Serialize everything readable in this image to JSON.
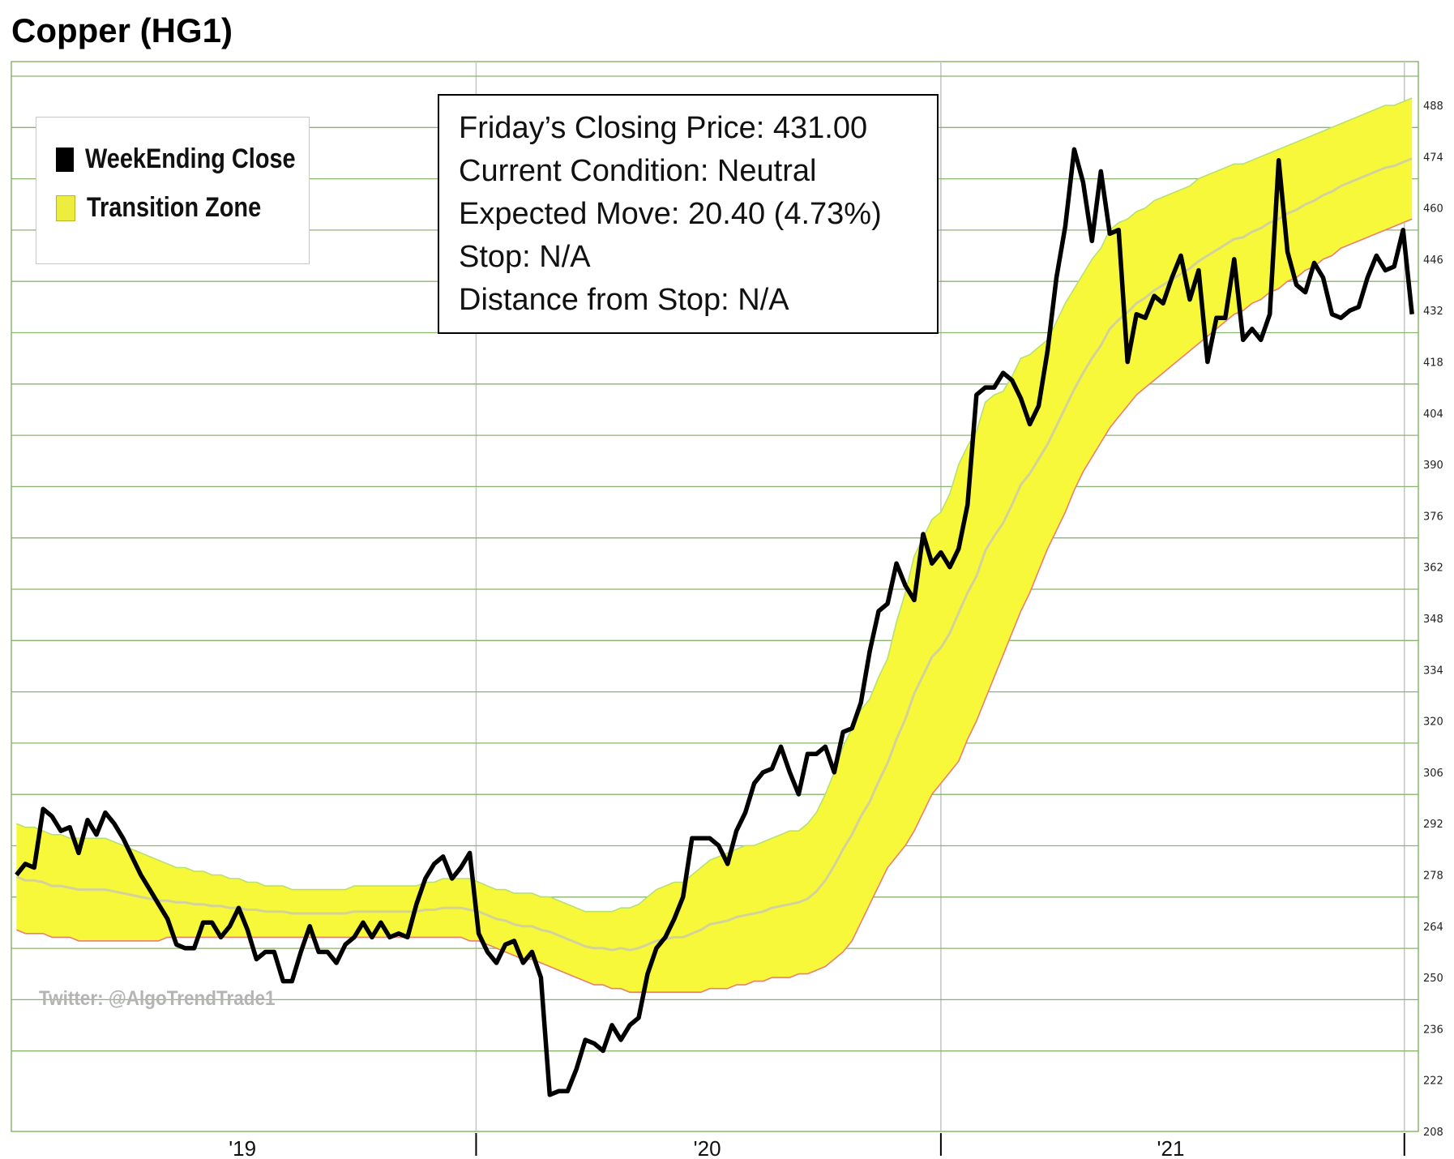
{
  "title": "Copper (HG1)",
  "legend": [
    {
      "label": "WeekEnding Close",
      "color": "#000000"
    },
    {
      "label": "Transition Zone",
      "color": "#eded3e"
    }
  ],
  "info_box": {
    "lines": [
      "Friday’s Closing Price: 431.00",
      "Current Condition: Neutral",
      "Expected Move: 20.40 (4.73%)",
      "Stop: N/A",
      "Distance from Stop: N/A"
    ]
  },
  "watermark": "Twitter: @AlgoTrendTrade1",
  "colors": {
    "price_line": "#000000",
    "zone_fill": "#f8f83a",
    "zone_upper_edge": "#b8e070",
    "zone_lower_edge": "#e88070",
    "mid_line": "#d2d29a",
    "grid": "#8ab56e",
    "vertical_grid": "#c4c4c4"
  },
  "chart_data": {
    "type": "line",
    "title": "Copper (HG1)",
    "xlabel": "",
    "ylabel": "",
    "ylim": [
      208,
      500
    ],
    "x_tick_labels": [
      "'19",
      "'20",
      "'21"
    ],
    "y_ticks": [
      208,
      222,
      236,
      250,
      264,
      278,
      292,
      306,
      320,
      334,
      348,
      362,
      376,
      390,
      404,
      418,
      432,
      446,
      460,
      474,
      488
    ],
    "grid": true,
    "legend_position": "top-left",
    "x": [
      "2019-01-04",
      "2019-01-11",
      "2019-01-18",
      "2019-01-25",
      "2019-02-01",
      "2019-02-08",
      "2019-02-15",
      "2019-02-22",
      "2019-03-01",
      "2019-03-08",
      "2019-03-15",
      "2019-03-22",
      "2019-03-29",
      "2019-04-05",
      "2019-04-12",
      "2019-04-19",
      "2019-04-26",
      "2019-05-03",
      "2019-05-10",
      "2019-05-17",
      "2019-05-24",
      "2019-05-31",
      "2019-06-07",
      "2019-06-14",
      "2019-06-21",
      "2019-06-28",
      "2019-07-05",
      "2019-07-12",
      "2019-07-19",
      "2019-07-26",
      "2019-08-02",
      "2019-08-09",
      "2019-08-16",
      "2019-08-23",
      "2019-08-30",
      "2019-09-06",
      "2019-09-13",
      "2019-09-20",
      "2019-09-27",
      "2019-10-04",
      "2019-10-11",
      "2019-10-18",
      "2019-10-25",
      "2019-11-01",
      "2019-11-08",
      "2019-11-15",
      "2019-11-22",
      "2019-11-29",
      "2019-12-06",
      "2019-12-13",
      "2019-12-20",
      "2019-12-27",
      "2020-01-03",
      "2020-01-10",
      "2020-01-17",
      "2020-01-24",
      "2020-01-31",
      "2020-02-07",
      "2020-02-14",
      "2020-02-21",
      "2020-02-28",
      "2020-03-06",
      "2020-03-13",
      "2020-03-20",
      "2020-03-27",
      "2020-04-03",
      "2020-04-10",
      "2020-04-17",
      "2020-04-24",
      "2020-05-01",
      "2020-05-08",
      "2020-05-15",
      "2020-05-22",
      "2020-05-29",
      "2020-06-05",
      "2020-06-12",
      "2020-06-19",
      "2020-06-26",
      "2020-07-03",
      "2020-07-10",
      "2020-07-17",
      "2020-07-24",
      "2020-07-31",
      "2020-08-07",
      "2020-08-14",
      "2020-08-21",
      "2020-08-28",
      "2020-09-04",
      "2020-09-11",
      "2020-09-18",
      "2020-09-25",
      "2020-10-02",
      "2020-10-09",
      "2020-10-16",
      "2020-10-23",
      "2020-10-30",
      "2020-11-06",
      "2020-11-13",
      "2020-11-20",
      "2020-11-27",
      "2020-12-04",
      "2020-12-11",
      "2020-12-18",
      "2020-12-25",
      "2021-01-01",
      "2021-01-08",
      "2021-01-15",
      "2021-01-22",
      "2021-01-29",
      "2021-02-05",
      "2021-02-12",
      "2021-02-19",
      "2021-02-26",
      "2021-03-05",
      "2021-03-12",
      "2021-03-19",
      "2021-03-26",
      "2021-04-02",
      "2021-04-09",
      "2021-04-16",
      "2021-04-23",
      "2021-04-30",
      "2021-05-07",
      "2021-05-14",
      "2021-05-21",
      "2021-05-28",
      "2021-06-04",
      "2021-06-11",
      "2021-06-18",
      "2021-06-25",
      "2021-07-02",
      "2021-07-09",
      "2021-07-16",
      "2021-07-23",
      "2021-07-30",
      "2021-08-06",
      "2021-08-13",
      "2021-08-20",
      "2021-08-27",
      "2021-09-03",
      "2021-09-10",
      "2021-09-17",
      "2021-09-24",
      "2021-10-01",
      "2021-10-08",
      "2021-10-15",
      "2021-10-22",
      "2021-10-29",
      "2021-11-05",
      "2021-11-12",
      "2021-11-19",
      "2021-11-26",
      "2021-12-03",
      "2021-12-10",
      "2021-12-17",
      "2021-12-24",
      "2021-12-31",
      "2022-01-07"
    ],
    "series": [
      {
        "name": "WeekEnding Close",
        "values": [
          278,
          281,
          280,
          296,
          294,
          290,
          291,
          284,
          293,
          289,
          295,
          292,
          288,
          283,
          278,
          274,
          270,
          266,
          259,
          258,
          258,
          265,
          265,
          261,
          264,
          269,
          263,
          255,
          257,
          257,
          249,
          249,
          257,
          264,
          257,
          257,
          254,
          259,
          261,
          265,
          261,
          265,
          261,
          262,
          261,
          270,
          277,
          281,
          283,
          277,
          280,
          284,
          262,
          257,
          254,
          259,
          260,
          254,
          257,
          250,
          218,
          219,
          219,
          225,
          233,
          232,
          230,
          237,
          233,
          237,
          239,
          251,
          258,
          261,
          266,
          272,
          288,
          288,
          288,
          286,
          281,
          290,
          295,
          303,
          306,
          307,
          313,
          306,
          300,
          311,
          311,
          313,
          306,
          317,
          318,
          325,
          339,
          350,
          352,
          363,
          357,
          353,
          371,
          363,
          366,
          362,
          367,
          379,
          409,
          411,
          411,
          415,
          413,
          408,
          401,
          406,
          421,
          441,
          455,
          476,
          467,
          451,
          470,
          453,
          454,
          418,
          431,
          430,
          436,
          434,
          441,
          447,
          435,
          443,
          418,
          430,
          430,
          446,
          424,
          427,
          424,
          431,
          473,
          448,
          439,
          437,
          445,
          441,
          431,
          430,
          432,
          433,
          441,
          447,
          443,
          444,
          454,
          431
        ]
      },
      {
        "name": "Transition Zone upper",
        "values": [
          292,
          291,
          291,
          290,
          289,
          289,
          288,
          288,
          288,
          288,
          288,
          287,
          286,
          285,
          284,
          283,
          282,
          281,
          280,
          280,
          279,
          279,
          278,
          278,
          277,
          277,
          276,
          276,
          275,
          275,
          275,
          274,
          274,
          274,
          274,
          274,
          274,
          274,
          275,
          275,
          275,
          275,
          275,
          275,
          275,
          275,
          276,
          276,
          277,
          277,
          277,
          277,
          276,
          275,
          274,
          274,
          273,
          273,
          273,
          272,
          272,
          271,
          270,
          269,
          268,
          268,
          268,
          268,
          269,
          269,
          270,
          272,
          274,
          275,
          276,
          276,
          278,
          280,
          282,
          283,
          284,
          285,
          286,
          286,
          287,
          288,
          289,
          290,
          290,
          292,
          295,
          300,
          306,
          313,
          318,
          323,
          326,
          332,
          337,
          347,
          355,
          365,
          370,
          375,
          377,
          382,
          390,
          395,
          399,
          407,
          409,
          410,
          414,
          419,
          420,
          422,
          424,
          429,
          434,
          438,
          442,
          446,
          449,
          454,
          456,
          457,
          459,
          460,
          462,
          463,
          464,
          465,
          466,
          468,
          469,
          470,
          471,
          472,
          472,
          473,
          474,
          475,
          476,
          477,
          478,
          479,
          480,
          481,
          482,
          483,
          484,
          485,
          486,
          487,
          488,
          488,
          489,
          490
        ]
      },
      {
        "name": "Transition Zone lower",
        "values": [
          263,
          262,
          262,
          262,
          261,
          261,
          261,
          260,
          260,
          260,
          260,
          260,
          260,
          260,
          260,
          260,
          260,
          261,
          261,
          261,
          261,
          261,
          261,
          261,
          261,
          261,
          261,
          261,
          261,
          261,
          261,
          261,
          261,
          261,
          261,
          261,
          261,
          261,
          261,
          261,
          261,
          261,
          261,
          261,
          261,
          261,
          261,
          261,
          261,
          261,
          261,
          260,
          260,
          259,
          258,
          257,
          256,
          255,
          255,
          254,
          253,
          252,
          251,
          250,
          249,
          248,
          248,
          247,
          247,
          246,
          246,
          246,
          246,
          246,
          246,
          246,
          246,
          246,
          247,
          247,
          247,
          248,
          248,
          249,
          249,
          250,
          250,
          250,
          251,
          251,
          252,
          253,
          255,
          257,
          260,
          265,
          270,
          275,
          280,
          283,
          286,
          290,
          295,
          300,
          303,
          306,
          309,
          315,
          320,
          326,
          332,
          338,
          344,
          350,
          355,
          361,
          367,
          372,
          377,
          383,
          388,
          392,
          396,
          400,
          403,
          406,
          409,
          411,
          413,
          415,
          417,
          419,
          421,
          423,
          425,
          427,
          429,
          431,
          432,
          434,
          435,
          437,
          438,
          440,
          441,
          443,
          444,
          446,
          447,
          449,
          450,
          451,
          452,
          453,
          454,
          455,
          456,
          457
        ]
      }
    ]
  }
}
